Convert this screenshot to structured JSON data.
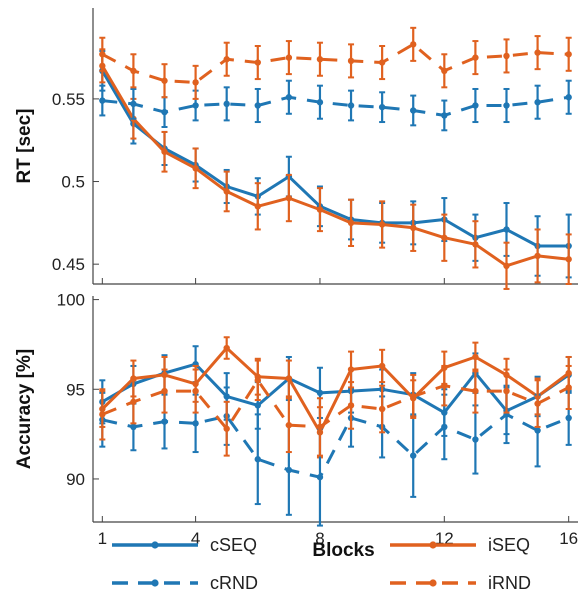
{
  "chart_data": [
    {
      "type": "line",
      "panel": "top",
      "ylabel": "RT [sec]",
      "ylim": [
        0.438,
        0.605
      ],
      "yticks": [
        "0.45",
        "0.5",
        "0.55"
      ],
      "ytick_values": [
        0.45,
        0.5,
        0.55
      ],
      "x": [
        1,
        2,
        3,
        4,
        5,
        6,
        7,
        8,
        9,
        10,
        11,
        12,
        13,
        14,
        15,
        16
      ],
      "series": [
        {
          "name": "cSEQ",
          "color": "#1f77b4",
          "dash": "solid",
          "values": [
            0.567,
            0.535,
            0.52,
            0.51,
            0.497,
            0.491,
            0.503,
            0.485,
            0.477,
            0.475,
            0.475,
            0.477,
            0.466,
            0.471,
            0.461,
            0.461
          ],
          "errors": [
            0.012,
            0.012,
            0.01,
            0.01,
            0.01,
            0.011,
            0.012,
            0.012,
            0.012,
            0.012,
            0.013,
            0.013,
            0.014,
            0.016,
            0.018,
            0.019
          ]
        },
        {
          "name": "iSEQ",
          "color": "#e0611f",
          "dash": "solid",
          "values": [
            0.57,
            0.538,
            0.518,
            0.508,
            0.494,
            0.485,
            0.49,
            0.483,
            0.475,
            0.474,
            0.472,
            0.466,
            0.462,
            0.449,
            0.455,
            0.453
          ],
          "errors": [
            0.01,
            0.012,
            0.012,
            0.012,
            0.012,
            0.014,
            0.014,
            0.013,
            0.014,
            0.014,
            0.014,
            0.014,
            0.014,
            0.014,
            0.016,
            0.015
          ]
        },
        {
          "name": "cRND",
          "color": "#1f77b4",
          "dash": "dashed",
          "values": [
            0.549,
            0.547,
            0.542,
            0.546,
            0.547,
            0.546,
            0.551,
            0.548,
            0.546,
            0.545,
            0.543,
            0.54,
            0.546,
            0.546,
            0.548,
            0.551
          ],
          "errors": [
            0.009,
            0.009,
            0.009,
            0.009,
            0.01,
            0.01,
            0.01,
            0.01,
            0.009,
            0.009,
            0.009,
            0.009,
            0.01,
            0.01,
            0.01,
            0.01
          ]
        },
        {
          "name": "iRND",
          "color": "#e0611f",
          "dash": "dashed",
          "values": [
            0.577,
            0.567,
            0.561,
            0.56,
            0.574,
            0.572,
            0.575,
            0.574,
            0.573,
            0.572,
            0.583,
            0.567,
            0.575,
            0.576,
            0.578,
            0.577
          ],
          "errors": [
            0.01,
            0.01,
            0.01,
            0.01,
            0.01,
            0.01,
            0.01,
            0.01,
            0.01,
            0.01,
            0.01,
            0.01,
            0.01,
            0.01,
            0.01,
            0.01
          ]
        }
      ]
    },
    {
      "type": "line",
      "panel": "bottom",
      "xlabel": "Blocks",
      "ylabel": "Accuracy [%]",
      "ylim": [
        87.6,
        100.2
      ],
      "yticks": [
        "90",
        "95",
        "100"
      ],
      "ytick_values": [
        90,
        95,
        100
      ],
      "xlim": [
        0.7,
        16.3
      ],
      "xticks": [
        "1",
        "4",
        "8",
        "12",
        "16"
      ],
      "xtick_values": [
        1,
        4,
        8,
        12,
        16
      ],
      "x": [
        1,
        2,
        3,
        4,
        5,
        6,
        7,
        8,
        9,
        10,
        11,
        12,
        13,
        14,
        15,
        16
      ],
      "series": [
        {
          "name": "cSEQ",
          "color": "#1f77b4",
          "dash": "solid",
          "values": [
            94.3,
            95.3,
            95.9,
            96.4,
            94.6,
            94.1,
            95.6,
            94.8,
            94.9,
            95.0,
            94.7,
            93.7,
            95.9,
            93.8,
            94.6,
            95.8
          ],
          "errors": [
            1.2,
            1.0,
            1.0,
            1.0,
            1.3,
            1.3,
            1.2,
            1.4,
            1.2,
            1.1,
            1.2,
            1.3,
            1.1,
            1.3,
            1.1,
            1.0
          ]
        },
        {
          "name": "iSEQ",
          "color": "#e0611f",
          "dash": "solid",
          "values": [
            93.9,
            95.6,
            95.8,
            95.3,
            97.3,
            95.7,
            95.6,
            92.6,
            96.1,
            96.3,
            94.5,
            96.2,
            96.8,
            95.8,
            94.6,
            95.9
          ],
          "errors": [
            1.0,
            1.0,
            1.0,
            1.0,
            0.6,
            1.0,
            1.0,
            1.4,
            1.0,
            0.9,
            1.0,
            0.9,
            0.8,
            0.9,
            1.0,
            0.9
          ]
        },
        {
          "name": "cRND",
          "color": "#1f77b4",
          "dash": "dashed",
          "values": [
            93.3,
            92.9,
            93.2,
            93.1,
            93.5,
            91.1,
            90.5,
            90.1,
            93.4,
            92.9,
            91.3,
            92.9,
            92.2,
            93.6,
            92.7,
            93.4
          ],
          "errors": [
            1.5,
            1.3,
            1.5,
            1.6,
            1.6,
            2.5,
            2.5,
            2.7,
            1.6,
            1.7,
            2.3,
            1.8,
            1.9,
            1.6,
            2.0,
            1.5
          ]
        },
        {
          "name": "iRND",
          "color": "#e0611f",
          "dash": "dashed",
          "values": [
            93.6,
            94.3,
            94.9,
            94.9,
            92.8,
            95.5,
            93.0,
            92.9,
            94.1,
            93.9,
            94.6,
            95.2,
            94.9,
            94.9,
            94.2,
            95.1
          ],
          "errors": [
            1.4,
            1.2,
            1.2,
            1.2,
            1.5,
            1.1,
            1.5,
            1.6,
            1.3,
            1.3,
            1.2,
            1.1,
            1.2,
            1.2,
            1.3,
            1.2
          ]
        }
      ]
    }
  ],
  "legend": {
    "items": [
      {
        "name": "cSEQ",
        "color": "#1f77b4",
        "dash": "solid"
      },
      {
        "name": "iSEQ",
        "color": "#e0611f",
        "dash": "solid"
      },
      {
        "name": "cRND",
        "color": "#1f77b4",
        "dash": "dashed"
      },
      {
        "name": "iRND",
        "color": "#e0611f",
        "dash": "dashed"
      }
    ]
  }
}
